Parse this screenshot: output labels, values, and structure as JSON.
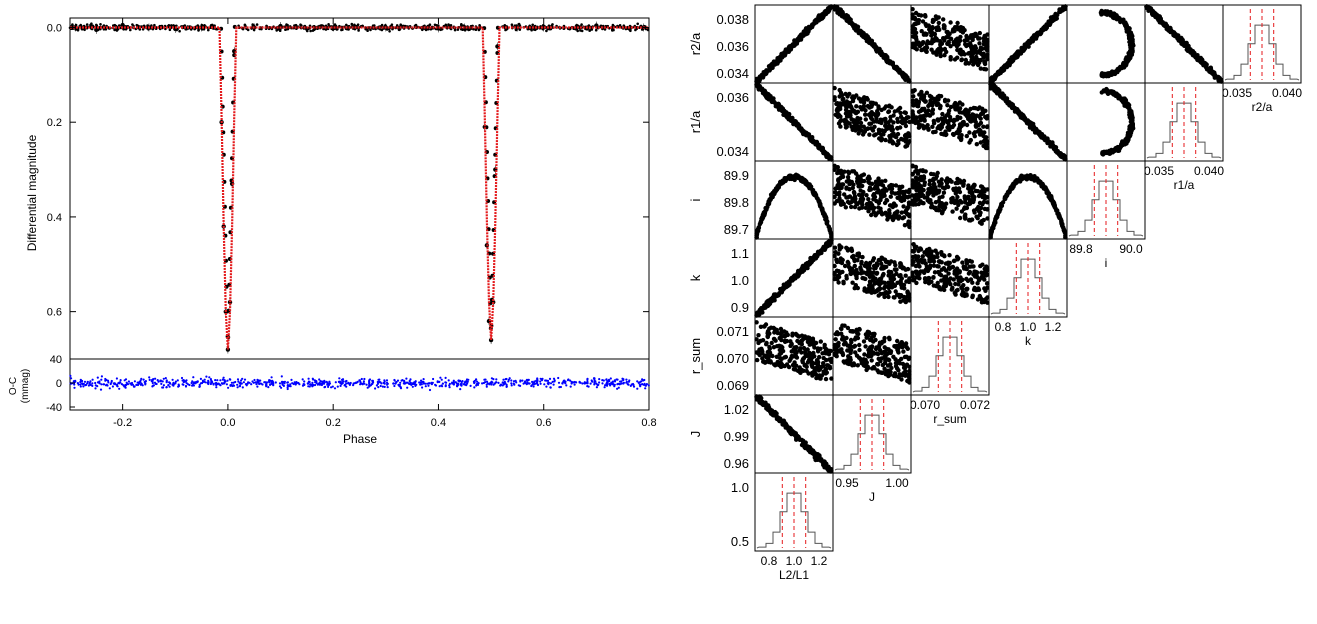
{
  "chart_data": [
    {
      "type": "scatter",
      "panel": "light-curve",
      "xlabel": "Phase",
      "ylabel": "Differential magnitude",
      "xlim": [
        -0.3,
        0.8
      ],
      "ylim": [
        -0.02,
        0.7
      ],
      "y_inverted": true,
      "xticks": [
        "-0.2",
        "0.0",
        "0.2",
        "0.4",
        "0.6",
        "0.8"
      ],
      "yticks": [
        "0.0",
        "0.2",
        "0.4",
        "0.6"
      ],
      "series": [
        {
          "name": "",
          "kind": "points",
          "color": "#000000",
          "description_points": "observations (black points with error bars), flat near 0.0 out of eclipse",
          "x": [
            -0.29,
            -0.25,
            -0.2,
            -0.15,
            -0.1,
            -0.05,
            -0.012,
            -0.008,
            -0.004,
            0.0,
            0.004,
            0.008,
            0.012,
            0.05,
            0.1,
            0.2,
            0.3,
            0.4,
            0.45,
            0.488,
            0.492,
            0.496,
            0.5,
            0.504,
            0.508,
            0.512,
            0.55,
            0.6,
            0.7,
            0.79
          ],
          "y": [
            0.0,
            0.005,
            -0.005,
            0.0,
            0.003,
            0.0,
            0.2,
            0.42,
            0.6,
            0.68,
            0.58,
            0.33,
            0.05,
            0.0,
            -0.003,
            0.0,
            0.0,
            0.002,
            0.0,
            0.21,
            0.46,
            0.62,
            0.66,
            0.58,
            0.3,
            0.04,
            0.0,
            0.0,
            -0.004,
            0.0
          ]
        },
        {
          "name": "",
          "kind": "line",
          "color": "#e41a1c",
          "x": [
            -0.3,
            -0.016,
            -0.012,
            -0.008,
            -0.004,
            0.0,
            0.004,
            0.008,
            0.012,
            0.016,
            0.484,
            0.488,
            0.492,
            0.496,
            0.5,
            0.504,
            0.508,
            0.512,
            0.516,
            0.8
          ],
          "y": [
            0.0,
            0.0,
            0.19,
            0.42,
            0.6,
            0.68,
            0.6,
            0.42,
            0.19,
            0.0,
            0.0,
            0.19,
            0.41,
            0.58,
            0.66,
            0.58,
            0.41,
            0.19,
            0.0,
            0.0
          ]
        }
      ]
    },
    {
      "type": "scatter",
      "panel": "residuals",
      "xlabel": "Phase",
      "ylabel": "O-C (mmag)",
      "xlim": [
        -0.3,
        0.8
      ],
      "ylim": [
        -45,
        40
      ],
      "xticks": [
        "-0.2",
        "0.0",
        "0.2",
        "0.4",
        "0.6",
        "0.8"
      ],
      "yticks": [
        "40",
        "0",
        "-40"
      ],
      "series": [
        {
          "name": "",
          "color": "#0000ff",
          "x_range": [
            -0.3,
            0.8
          ],
          "y_spread": [
            -30,
            30
          ]
        }
      ]
    },
    {
      "type": "scatter",
      "panel": "corner-plot",
      "parameters": [
        "L2/L1",
        "J",
        "r_sum",
        "k",
        "i",
        "r1/a",
        "r2/a"
      ],
      "row_labels": [
        "r2/a",
        "r1/a",
        "i",
        "k",
        "r_sum",
        "J",
        ""
      ],
      "col_labels": [
        "L2/L1",
        "J",
        "r_sum",
        "k",
        "i",
        "r1/a",
        "r2/a"
      ],
      "yticks": {
        "r2/a": [
          "0.038",
          "0.036",
          "0.034"
        ],
        "r1/a": [
          "0.036",
          "0.034"
        ],
        "i": [
          "89.9",
          "89.8",
          "89.7"
        ],
        "k": [
          "1.1",
          "1.0",
          "0.9"
        ],
        "r_sum": [
          "0.071",
          "0.070",
          "0.069"
        ],
        "J": [
          "1.02",
          "0.99",
          "0.96"
        ],
        "L2/L1": [
          "1.0",
          "0.5"
        ]
      },
      "xticks": {
        "L2/L1": [
          "0.8",
          "1.0",
          "1.2"
        ],
        "J": [
          "0.95",
          "1.00"
        ],
        "r_sum": [
          "0.070",
          "0.072"
        ],
        "k": [
          "0.8",
          "1.0",
          "1.2"
        ],
        "i": [
          "89.8",
          "90.0"
        ],
        "r1/a": [
          "0.035",
          "0.040"
        ],
        "r2/a": [
          "0.035",
          "0.040"
        ]
      },
      "histogram_line_color": "#555555",
      "histogram_marker_color": "#e41a1c"
    }
  ]
}
